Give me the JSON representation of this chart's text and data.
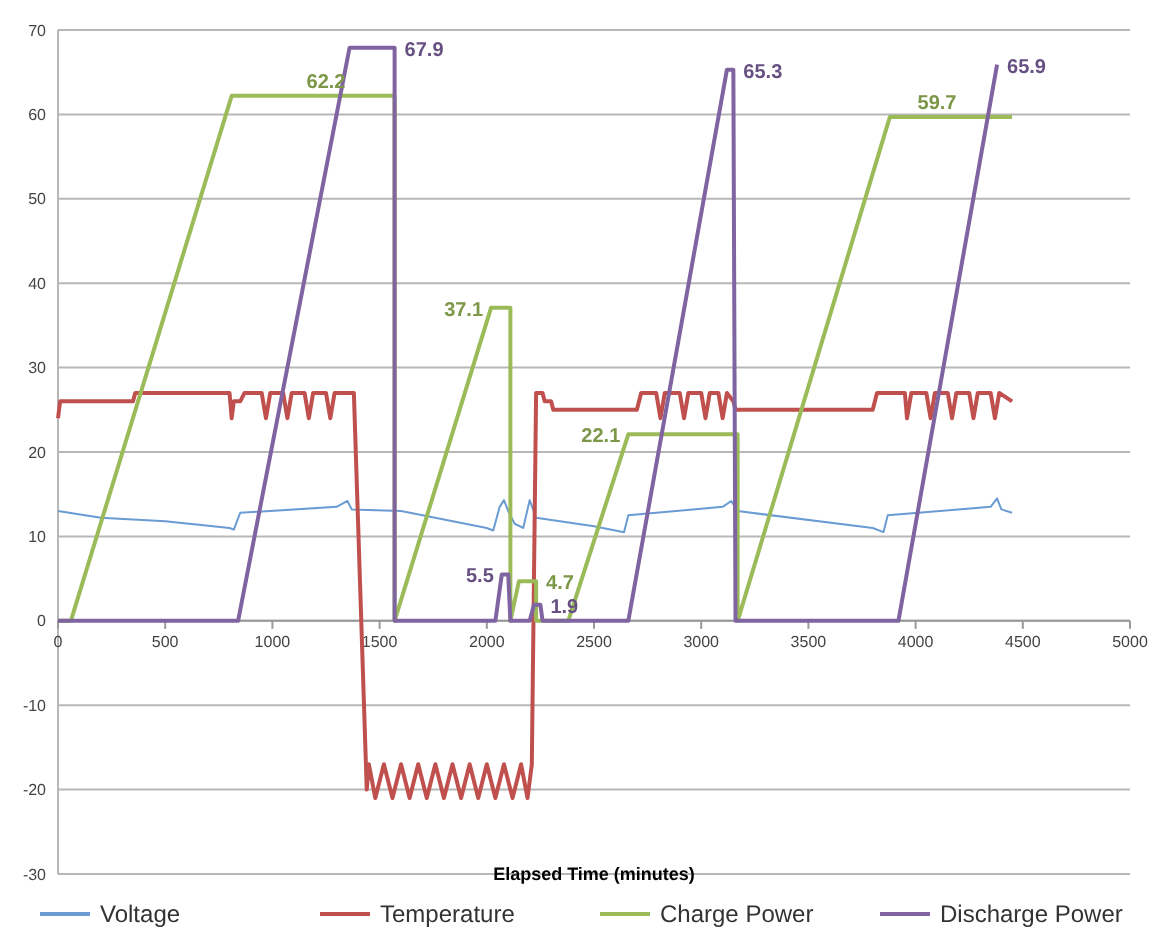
{
  "chart_data": {
    "type": "line",
    "xlabel": "Elapsed Time (minutes)",
    "xlim": [
      0,
      5000
    ],
    "xticks": [
      0,
      500,
      1000,
      1500,
      2000,
      2500,
      3000,
      3500,
      4000,
      4500,
      5000
    ],
    "ylim": [
      -30,
      70
    ],
    "yticks": [
      -30,
      -20,
      -10,
      0,
      10,
      20,
      30,
      40,
      50,
      60,
      70
    ],
    "grid": "y",
    "legend": "bottom",
    "marker": "none",
    "line_style": "solid",
    "series": [
      {
        "name": "Voltage",
        "color": "#6a9bd3",
        "x": [
          0,
          200,
          500,
          800,
          820,
          850,
          1300,
          1350,
          1370,
          1600,
          2000,
          2030,
          2060,
          2080,
          2100,
          2130,
          2170,
          2200,
          2230,
          2500,
          2640,
          2660,
          3100,
          3140,
          3170,
          3800,
          3850,
          3870,
          4350,
          4380,
          4400,
          4450
        ],
        "values": [
          13,
          12.2,
          11.8,
          11,
          10.8,
          12.8,
          13.5,
          14.2,
          13.2,
          13,
          11,
          10.7,
          13.5,
          14.3,
          13,
          11.5,
          11,
          14.3,
          12.2,
          11.2,
          10.5,
          12.5,
          13.5,
          14.2,
          13,
          11,
          10.5,
          12.5,
          13.5,
          14.5,
          13.2,
          12.8
        ]
      },
      {
        "name": "Temperature",
        "color": "#c0504d",
        "x": [
          0,
          10,
          350,
          360,
          800,
          810,
          820,
          850,
          870,
          950,
          970,
          990,
          1050,
          1070,
          1090,
          1150,
          1170,
          1190,
          1250,
          1270,
          1290,
          1380,
          1440,
          1450,
          1480,
          1520,
          1560,
          1600,
          1640,
          1680,
          1720,
          1760,
          1800,
          1840,
          1880,
          1920,
          1960,
          2000,
          2040,
          2080,
          2120,
          2160,
          2190,
          2210,
          2230,
          2260,
          2270,
          2300,
          2310,
          2700,
          2720,
          2790,
          2810,
          2830,
          2900,
          2920,
          2940,
          3000,
          3020,
          3040,
          3080,
          3100,
          3120,
          3150,
          3160,
          3800,
          3820,
          3950,
          3960,
          3980,
          4050,
          4070,
          4090,
          4150,
          4170,
          4190,
          4250,
          4270,
          4290,
          4350,
          4370,
          4390,
          4450
        ],
        "values": [
          24,
          26,
          26,
          27,
          27,
          24,
          26,
          26,
          27,
          27,
          24,
          27,
          27,
          24,
          27,
          27,
          24,
          27,
          27,
          24,
          27,
          27,
          -20,
          -17,
          -21,
          -17,
          -21,
          -17,
          -21,
          -17,
          -21,
          -17,
          -21,
          -17,
          -21,
          -17,
          -21,
          -17,
          -21,
          -17,
          -21,
          -17,
          -21,
          -17,
          27,
          27,
          26,
          26,
          25,
          25,
          27,
          27,
          24,
          27,
          27,
          24,
          27,
          27,
          24,
          27,
          27,
          24,
          27,
          26,
          25,
          25,
          27,
          27,
          24,
          27,
          27,
          24,
          27,
          27,
          24,
          27,
          27,
          24,
          27,
          27,
          24,
          27,
          26
        ]
      },
      {
        "name": "Charge Power",
        "color": "#9bbb59",
        "x": [
          0,
          60,
          810,
          1570,
          1570,
          2020,
          2110,
          2110,
          2150,
          2230,
          2230,
          2380,
          2660,
          3170,
          3170,
          3880,
          4450
        ],
        "values": [
          0,
          0,
          62.2,
          62.2,
          0,
          37.1,
          37.1,
          0,
          4.7,
          4.7,
          0,
          0,
          22.1,
          22.1,
          0,
          59.7,
          59.7
        ]
      },
      {
        "name": "Discharge Power",
        "color": "#8064a2",
        "x": [
          0,
          840,
          1360,
          1570,
          1570,
          2040,
          2070,
          2100,
          2110,
          2200,
          2220,
          2250,
          2260,
          2660,
          3120,
          3150,
          3160,
          3820,
          3920,
          4380
        ],
        "values": [
          0,
          0,
          67.9,
          67.9,
          0,
          0,
          5.5,
          5.5,
          0,
          0,
          1.9,
          1.9,
          0,
          0,
          65.3,
          65.3,
          0,
          0,
          0,
          65.9
        ]
      }
    ],
    "annotations": [
      {
        "text": "62.2",
        "x": 1250,
        "y": 62.2
      },
      {
        "text": "67.9",
        "x": 1570,
        "y": 67.9
      },
      {
        "text": "37.1",
        "x": 2020,
        "y": 37.1
      },
      {
        "text": "5.5",
        "x": 2070,
        "y": 5.5
      },
      {
        "text": "4.7",
        "x": 2230,
        "y": 4.7
      },
      {
        "text": "1.9",
        "x": 2250,
        "y": 1.9
      },
      {
        "text": "22.1",
        "x": 2660,
        "y": 22.1
      },
      {
        "text": "65.3",
        "x": 3150,
        "y": 65.3
      },
      {
        "text": "59.7",
        "x": 4100,
        "y": 59.7
      },
      {
        "text": "65.9",
        "x": 4380,
        "y": 65.9
      }
    ]
  }
}
